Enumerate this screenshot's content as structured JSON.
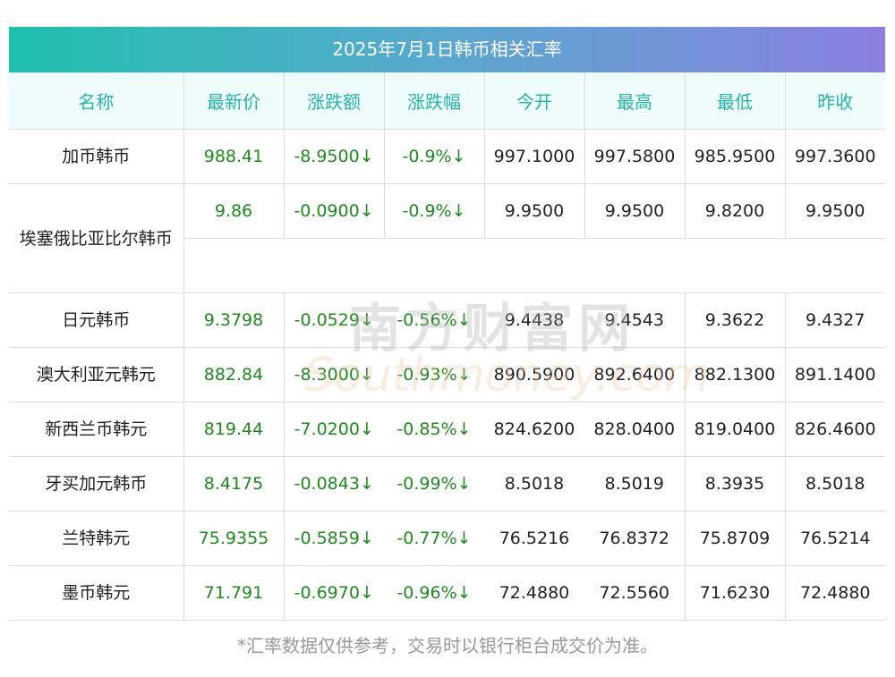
{
  "title": "2025年7月1日韩币相关汇率",
  "headers": [
    "名称",
    "最新价",
    "涨跌额",
    "涨跌幅",
    "今开",
    "最高",
    "最低",
    "昨收"
  ],
  "rows": [
    {
      "name": "加币韩币",
      "latest": "988.41",
      "change": "-8.9500↓",
      "pct": "-0.9%↓",
      "open": "997.1000",
      "high": "997.5800",
      "low": "985.9500",
      "prev": "997.3600"
    },
    {
      "name": "埃塞俄比亚比尔韩币",
      "latest": "9.86",
      "change": "-0.0900↓",
      "pct": "-0.9%↓",
      "open": "9.9500",
      "high": "9.9500",
      "low": "9.8200",
      "prev": "9.9500"
    },
    {
      "name": "日元韩币",
      "latest": "9.3798",
      "change": "-0.0529↓",
      "pct": "-0.56%↓",
      "open": "9.4438",
      "high": "9.4543",
      "low": "9.3622",
      "prev": "9.4327"
    },
    {
      "name": "澳大利亚元韩元",
      "latest": "882.84",
      "change": "-8.3000↓",
      "pct": "-0.93%↓",
      "open": "890.5900",
      "high": "892.6400",
      "low": "882.1300",
      "prev": "891.1400"
    },
    {
      "name": "新西兰币韩元",
      "latest": "819.44",
      "change": "-7.0200↓",
      "pct": "-0.85%↓",
      "open": "824.6200",
      "high": "828.0400",
      "low": "819.0400",
      "prev": "826.4600"
    },
    {
      "name": "牙买加元韩币",
      "latest": "8.4175",
      "change": "-0.0843↓",
      "pct": "-0.99%↓",
      "open": "8.5018",
      "high": "8.5019",
      "low": "8.3935",
      "prev": "8.5018"
    },
    {
      "name": "兰特韩元",
      "latest": "75.9355",
      "change": "-0.5859↓",
      "pct": "-0.77%↓",
      "open": "76.5216",
      "high": "76.8372",
      "low": "75.8709",
      "prev": "76.5214"
    },
    {
      "name": "墨币韩元",
      "latest": "71.791",
      "change": "-0.6970↓",
      "pct": "-0.96%↓",
      "open": "72.4880",
      "high": "72.5560",
      "low": "71.6230",
      "prev": "72.4880"
    }
  ],
  "watermark": {
    "cn": "南方财富网",
    "en": "Southmoney.com"
  },
  "footnote": "*汇率数据仅供参考，交易时以银行柜台成交价为准。",
  "colors": {
    "header_text": "#29b3a8",
    "header_bg": "#effcfc",
    "down": "#1e8a1e",
    "title_gradient_start": "#1fbfae",
    "title_gradient_end": "#8a7fe0"
  }
}
